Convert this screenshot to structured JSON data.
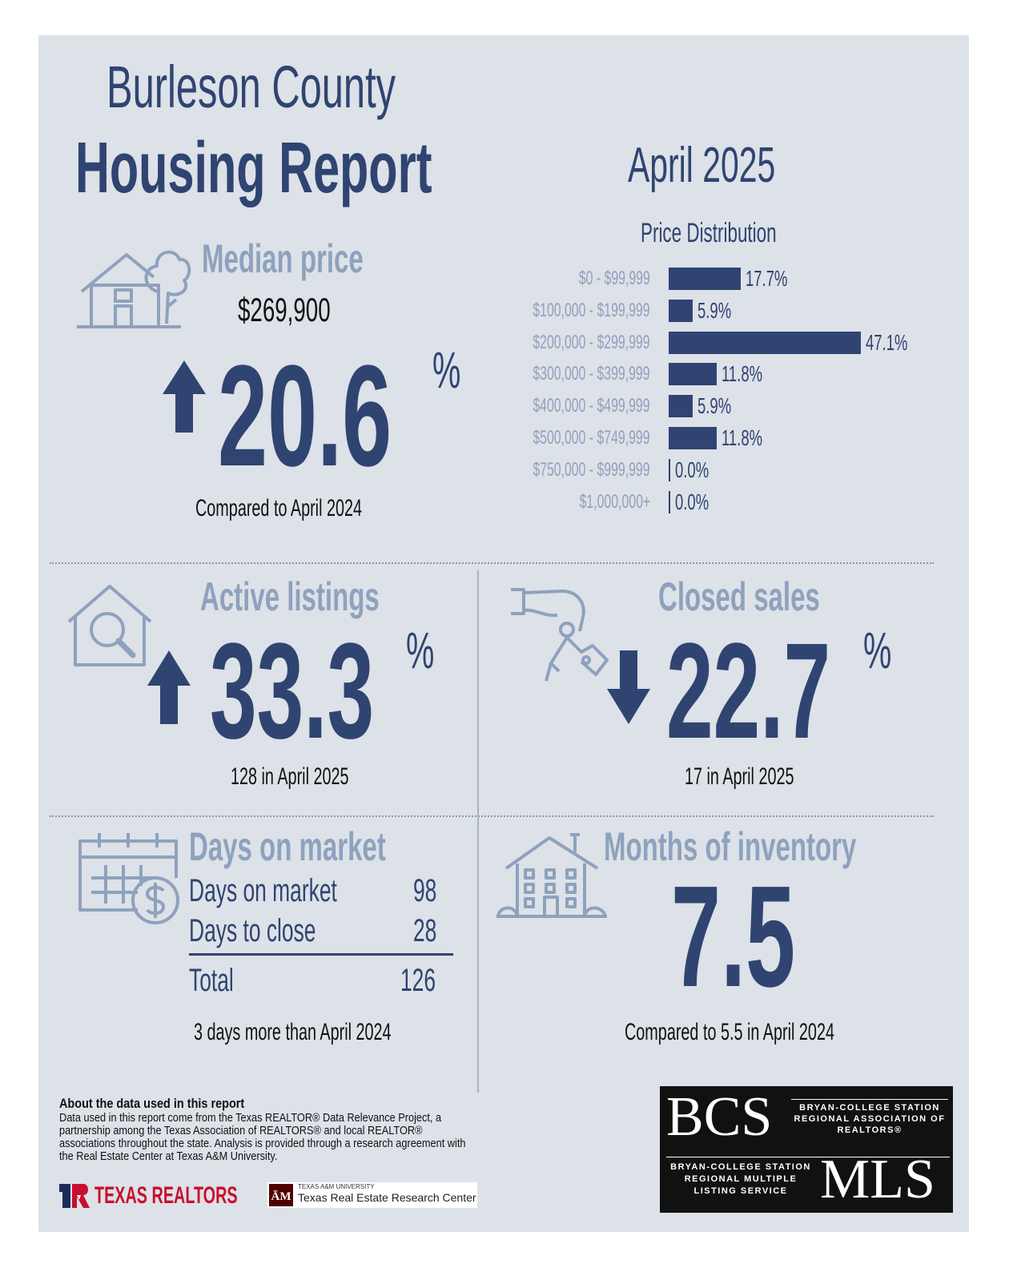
{
  "header": {
    "title_line1": "Burleson County",
    "title_line2": "Housing Report",
    "month": "April 2025"
  },
  "median_price": {
    "label": "Median price",
    "value": "$269,900",
    "change": "20.6",
    "unit": "%",
    "direction": "up",
    "caption": "Compared to April 2024"
  },
  "price_distribution": {
    "title": "Price Distribution",
    "rows": [
      {
        "range": "$0 - $99,999",
        "value": "17.7%"
      },
      {
        "range": "$100,000 - $199,999",
        "value": "5.9%"
      },
      {
        "range": "$200,000 - $299,999",
        "value": "47.1%"
      },
      {
        "range": "$300,000 - $399,999",
        "value": "11.8%"
      },
      {
        "range": "$400,000 - $499,999",
        "value": "5.9%"
      },
      {
        "range": "$500,000 - $749,999",
        "value": "11.8%"
      },
      {
        "range": "$750,000 - $999,999",
        "value": "0.0%"
      },
      {
        "range": "$1,000,000+",
        "value": "0.0%"
      }
    ]
  },
  "chart_data": {
    "type": "bar",
    "title": "Price Distribution",
    "categories": [
      "$0 - $99,999",
      "$100,000 - $199,999",
      "$200,000 - $299,999",
      "$300,000 - $399,999",
      "$400,000 - $499,999",
      "$500,000 - $749,999",
      "$750,000 - $999,999",
      "$1,000,000+"
    ],
    "values": [
      17.7,
      5.9,
      47.1,
      11.8,
      5.9,
      11.8,
      0.0,
      0.0
    ],
    "orientation": "horizontal",
    "xlim": [
      0,
      47.1
    ]
  },
  "active_listings": {
    "label": "Active listings",
    "change": "33.3",
    "unit": "%",
    "direction": "up",
    "caption": "128 in April 2025"
  },
  "closed_sales": {
    "label": "Closed sales",
    "change": "22.7",
    "unit": "%",
    "direction": "down",
    "caption": "17 in April 2025"
  },
  "days_on_market": {
    "label": "Days on market",
    "rows": [
      {
        "name": "Days on market",
        "value": "98"
      },
      {
        "name": "Days to close",
        "value": "28"
      }
    ],
    "total_label": "Total",
    "total_value": "126",
    "caption": "3 days more than April 2024"
  },
  "months_inventory": {
    "label": "Months of inventory",
    "value": "7.5",
    "caption": "Compared to 5.5 in April 2024"
  },
  "footer": {
    "about_title": "About the data used in this report",
    "about_text": "Data used in this report come from the Texas REALTOR® Data Relevance Project, a partnership among the Texas Association of REALTORS® and local REALTOR® associations throughout the state. Analysis is provided through a research agreement with the Real Estate Center at Texas A&M University.",
    "texas_realtors": "TEXAS REALTORS",
    "tamu_small": "TEXAS A&M UNIVERSITY",
    "tamu_center": "Texas Real Estate Research Center"
  },
  "logo": {
    "bcs": "BCS",
    "bcs_text": "BRYAN-COLLEGE STATION REGIONAL ASSOCIATION OF REALTORS®",
    "mls": "MLS",
    "mls_text": "BRYAN-COLLEGE STATION REGIONAL MULTIPLE LISTING SERVICE"
  },
  "colors": {
    "navy": "#2f4471",
    "muted": "#8ea2bd",
    "panel": "#dde1e8"
  },
  "icons": [
    "house-tree-icon",
    "house-search-icon",
    "hand-keys-icon",
    "calendar-dollar-icon",
    "townhouse-icon",
    "arrow-up-icon",
    "arrow-down-icon"
  ]
}
